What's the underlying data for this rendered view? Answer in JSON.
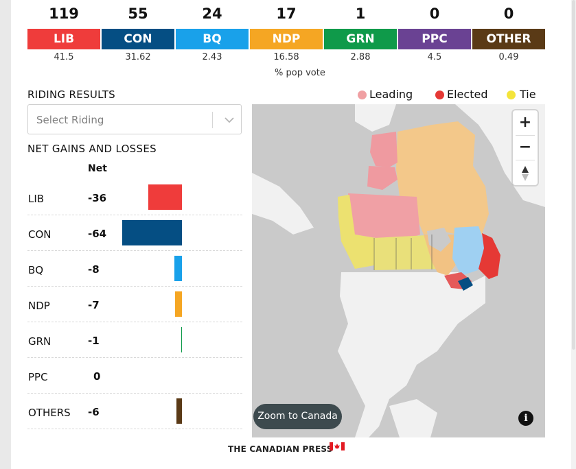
{
  "parties": [
    {
      "seats": "119",
      "label": "LIB",
      "pct": "41.5",
      "color": "#ef3c3b"
    },
    {
      "seats": "55",
      "label": "CON",
      "pct": "31.62",
      "color": "#054e83"
    },
    {
      "seats": "24",
      "label": "BQ",
      "pct": "2.43",
      "color": "#19a1ea"
    },
    {
      "seats": "17",
      "label": "NDP",
      "pct": "16.58",
      "color": "#f5a623"
    },
    {
      "seats": "1",
      "label": "GRN",
      "pct": "2.88",
      "color": "#0f9a4a"
    },
    {
      "seats": "0",
      "label": "PPC",
      "pct": "4.5",
      "color": "#6a4293"
    },
    {
      "seats": "0",
      "label": "OTHER",
      "pct": "0.49",
      "color": "#5a3a16"
    }
  ],
  "pop_vote_label": "% pop vote",
  "riding": {
    "title": "RIDING RESULTS",
    "select_placeholder": "Select Riding"
  },
  "gains": {
    "title": "NET GAINS AND LOSSES",
    "net_header": "Net",
    "rows": [
      {
        "label": "LIB",
        "value": "-36",
        "net": -36,
        "color": "#ef3c3b"
      },
      {
        "label": "CON",
        "value": "-64",
        "net": -64,
        "color": "#054e83"
      },
      {
        "label": "BQ",
        "value": "-8",
        "net": -8,
        "color": "#19a1ea"
      },
      {
        "label": "NDP",
        "value": "-7",
        "net": -7,
        "color": "#f5a623"
      },
      {
        "label": "GRN",
        "value": "-1",
        "net": -1,
        "color": "#0f9a4a"
      },
      {
        "label": "PPC",
        "value": "0",
        "net": 0,
        "color": "#6a4293"
      },
      {
        "label": "OTHERS",
        "value": "-6",
        "net": -6,
        "color": "#5a3a16"
      }
    ]
  },
  "legend": [
    {
      "label": "Leading",
      "color": "#f0a0a3"
    },
    {
      "label": "Elected",
      "color": "#e53935"
    },
    {
      "label": "Tie",
      "color": "#f4e43a"
    }
  ],
  "map": {
    "zoom_in": "+",
    "zoom_out": "−",
    "zoom_to_canada": "Zoom to Canada",
    "info": "i"
  },
  "footer": {
    "text": "THE CANADIAN PRESS"
  }
}
